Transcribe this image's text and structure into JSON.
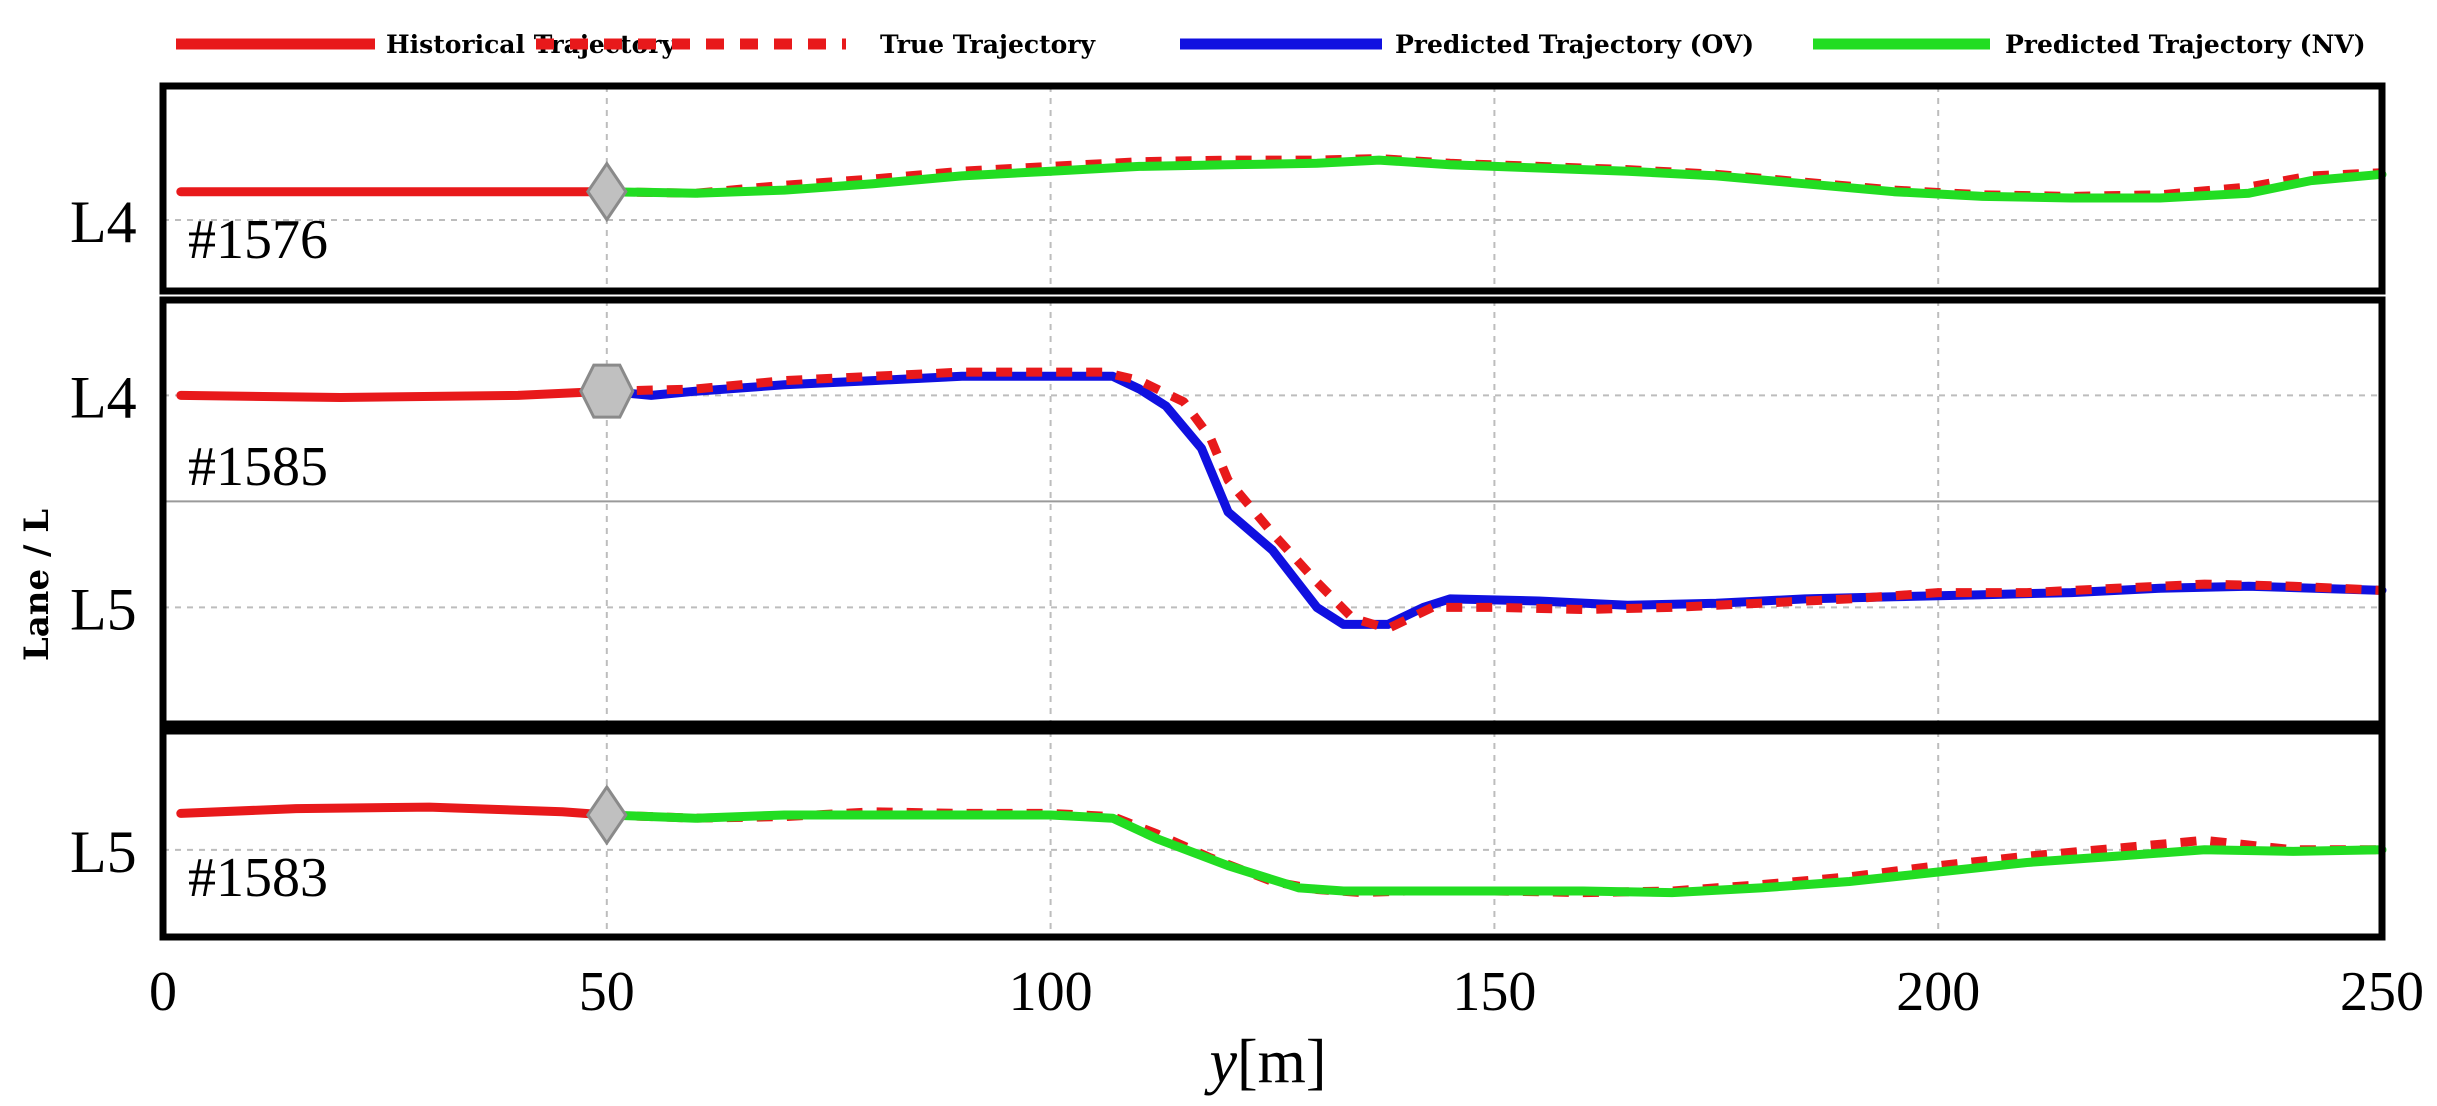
{
  "chart_data": {
    "type": "line",
    "xlabel_italic": "y",
    "xlabel_unit": "[m]",
    "ylabel": "Lane / L",
    "xlim": [
      0,
      250
    ],
    "xticks": [
      "0",
      "50",
      "100",
      "150",
      "200",
      "250"
    ],
    "legend_placement": "top",
    "grid": true,
    "colors": {
      "historical": "#e8191b",
      "true": "#e8191b",
      "predicted_ov": "#1010e0",
      "predicted_nv": "#22dd22",
      "marker": "#c0c0c0"
    },
    "legend": [
      {
        "label": "Historical Trajectory",
        "style": "solid",
        "color": "#e8191b"
      },
      {
        "label": "True Trajectory",
        "style": "dashed",
        "color": "#e8191b"
      },
      {
        "label": "Predicted Trajectory (OV)",
        "style": "solid",
        "color": "#1010e0"
      },
      {
        "label": "Predicted Trajectory (NV)",
        "style": "solid",
        "color": "#22dd22"
      }
    ],
    "panels": [
      {
        "vehicle": "#1576",
        "ylim": [
          -0.45,
          0.85
        ],
        "lane_labels": [
          {
            "label": "L4",
            "value": 0
          }
        ],
        "marker": {
          "x": 50,
          "shape": "diamond"
        },
        "historical": [
          [
            2,
            0.18
          ],
          [
            20,
            0.18
          ],
          [
            40,
            0.18
          ],
          [
            50,
            0.18
          ]
        ],
        "true": [
          [
            50,
            0.18
          ],
          [
            60,
            0.17
          ],
          [
            70,
            0.22
          ],
          [
            80,
            0.26
          ],
          [
            90,
            0.31
          ],
          [
            100,
            0.34
          ],
          [
            110,
            0.37
          ],
          [
            120,
            0.38
          ],
          [
            130,
            0.38
          ],
          [
            137,
            0.39
          ],
          [
            145,
            0.36
          ],
          [
            155,
            0.34
          ],
          [
            165,
            0.32
          ],
          [
            175,
            0.29
          ],
          [
            185,
            0.24
          ],
          [
            195,
            0.19
          ],
          [
            205,
            0.16
          ],
          [
            215,
            0.15
          ],
          [
            225,
            0.16
          ],
          [
            235,
            0.21
          ],
          [
            242,
            0.28
          ],
          [
            250,
            0.3
          ]
        ],
        "predicted_nv": [
          [
            50,
            0.18
          ],
          [
            60,
            0.17
          ],
          [
            70,
            0.19
          ],
          [
            80,
            0.23
          ],
          [
            90,
            0.28
          ],
          [
            100,
            0.31
          ],
          [
            110,
            0.34
          ],
          [
            120,
            0.35
          ],
          [
            130,
            0.36
          ],
          [
            137,
            0.38
          ],
          [
            145,
            0.35
          ],
          [
            155,
            0.33
          ],
          [
            165,
            0.31
          ],
          [
            175,
            0.28
          ],
          [
            185,
            0.23
          ],
          [
            195,
            0.18
          ],
          [
            205,
            0.15
          ],
          [
            215,
            0.14
          ],
          [
            225,
            0.14
          ],
          [
            235,
            0.17
          ],
          [
            242,
            0.25
          ],
          [
            250,
            0.29
          ]
        ]
      },
      {
        "vehicle": "#1585",
        "ylim": [
          -0.55,
          1.45
        ],
        "lane_labels": [
          {
            "label": "L4",
            "value": 1
          },
          {
            "label": "L5",
            "value": 0
          }
        ],
        "lane_divider": 0.5,
        "marker": {
          "x": 50,
          "shape": "hexagon"
        },
        "historical": [
          [
            2,
            1.0
          ],
          [
            20,
            0.99
          ],
          [
            40,
            1.0
          ],
          [
            50,
            1.02
          ]
        ],
        "true": [
          [
            50,
            1.02
          ],
          [
            60,
            1.03
          ],
          [
            70,
            1.07
          ],
          [
            80,
            1.09
          ],
          [
            90,
            1.11
          ],
          [
            100,
            1.11
          ],
          [
            106,
            1.11
          ],
          [
            110,
            1.07
          ],
          [
            115,
            0.97
          ],
          [
            118,
            0.8
          ],
          [
            120,
            0.6
          ],
          [
            125,
            0.35
          ],
          [
            130,
            0.12
          ],
          [
            134,
            -0.05
          ],
          [
            138,
            -0.1
          ],
          [
            143,
            0.0
          ],
          [
            150,
            0.0
          ],
          [
            160,
            -0.01
          ],
          [
            170,
            0.0
          ],
          [
            180,
            0.02
          ],
          [
            190,
            0.04
          ],
          [
            200,
            0.07
          ],
          [
            210,
            0.07
          ],
          [
            220,
            0.09
          ],
          [
            230,
            0.11
          ],
          [
            240,
            0.1
          ],
          [
            250,
            0.08
          ]
        ],
        "predicted_ov": [
          [
            50,
            1.02
          ],
          [
            55,
            1.0
          ],
          [
            60,
            1.02
          ],
          [
            70,
            1.05
          ],
          [
            80,
            1.07
          ],
          [
            90,
            1.09
          ],
          [
            100,
            1.09
          ],
          [
            107,
            1.09
          ],
          [
            110,
            1.03
          ],
          [
            113,
            0.95
          ],
          [
            117,
            0.75
          ],
          [
            120,
            0.45
          ],
          [
            125,
            0.27
          ],
          [
            130,
            0.0
          ],
          [
            133,
            -0.08
          ],
          [
            138,
            -0.08
          ],
          [
            142,
            0.0
          ],
          [
            145,
            0.04
          ],
          [
            155,
            0.03
          ],
          [
            165,
            0.01
          ],
          [
            175,
            0.02
          ],
          [
            185,
            0.04
          ],
          [
            195,
            0.05
          ],
          [
            205,
            0.06
          ],
          [
            215,
            0.07
          ],
          [
            225,
            0.09
          ],
          [
            235,
            0.1
          ],
          [
            250,
            0.08
          ]
        ]
      },
      {
        "vehicle": "#1583",
        "ylim": [
          -0.55,
          0.75
        ],
        "lane_labels": [
          {
            "label": "L5",
            "value": 0
          }
        ],
        "marker": {
          "x": 50,
          "shape": "diamond"
        },
        "historical": [
          [
            2,
            0.23
          ],
          [
            15,
            0.26
          ],
          [
            30,
            0.27
          ],
          [
            45,
            0.24
          ],
          [
            50,
            0.22
          ]
        ],
        "true": [
          [
            50,
            0.22
          ],
          [
            60,
            0.2
          ],
          [
            70,
            0.21
          ],
          [
            80,
            0.24
          ],
          [
            90,
            0.23
          ],
          [
            100,
            0.23
          ],
          [
            107,
            0.21
          ],
          [
            112,
            0.1
          ],
          [
            118,
            -0.05
          ],
          [
            125,
            -0.2
          ],
          [
            130,
            -0.25
          ],
          [
            135,
            -0.27
          ],
          [
            140,
            -0.26
          ],
          [
            150,
            -0.26
          ],
          [
            160,
            -0.27
          ],
          [
            170,
            -0.26
          ],
          [
            180,
            -0.22
          ],
          [
            190,
            -0.17
          ],
          [
            200,
            -0.1
          ],
          [
            210,
            -0.04
          ],
          [
            220,
            0.01
          ],
          [
            230,
            0.06
          ],
          [
            240,
            0.0
          ],
          [
            250,
            0.0
          ]
        ],
        "predicted_nv": [
          [
            50,
            0.22
          ],
          [
            60,
            0.2
          ],
          [
            70,
            0.22
          ],
          [
            80,
            0.22
          ],
          [
            90,
            0.22
          ],
          [
            100,
            0.22
          ],
          [
            107,
            0.2
          ],
          [
            112,
            0.07
          ],
          [
            120,
            -0.1
          ],
          [
            128,
            -0.24
          ],
          [
            133,
            -0.26
          ],
          [
            140,
            -0.26
          ],
          [
            150,
            -0.26
          ],
          [
            160,
            -0.26
          ],
          [
            170,
            -0.27
          ],
          [
            180,
            -0.24
          ],
          [
            190,
            -0.2
          ],
          [
            200,
            -0.14
          ],
          [
            210,
            -0.08
          ],
          [
            220,
            -0.04
          ],
          [
            230,
            0.0
          ],
          [
            240,
            -0.01
          ],
          [
            250,
            0.0
          ]
        ]
      }
    ]
  }
}
